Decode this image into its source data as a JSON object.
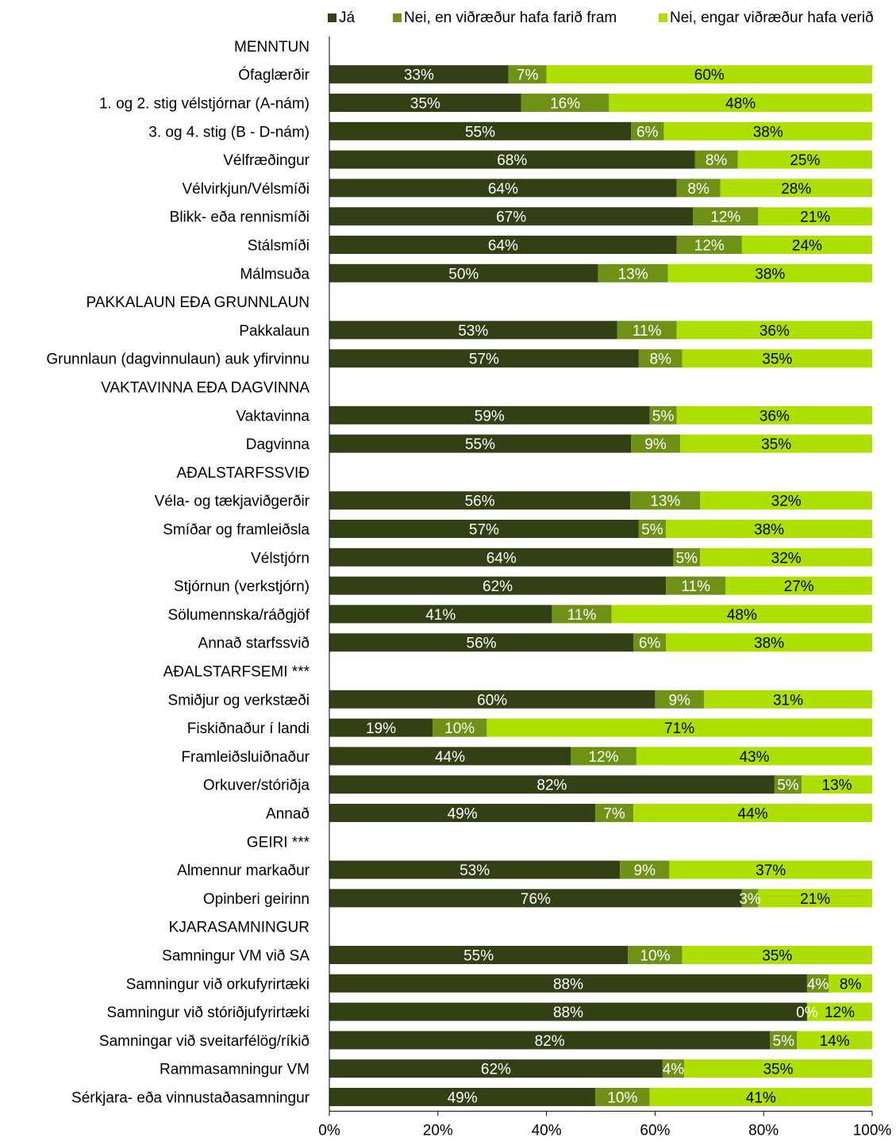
{
  "chart_data": {
    "type": "bar",
    "orientation": "horizontal",
    "stacked": "percent",
    "xlim": [
      0,
      100
    ],
    "x_ticks": [
      "0%",
      "20%",
      "40%",
      "60%",
      "80%",
      "100%"
    ],
    "grid": false,
    "legend_position": "top",
    "series": [
      {
        "name": "Já",
        "color": "#333f14"
      },
      {
        "name": "Nei, en viðræður hafa farið fram",
        "color": "#6f9115"
      },
      {
        "name": "Nei, engar viðræður hafa verið",
        "color": "#addf00"
      }
    ],
    "rows": [
      {
        "label": "MENNTUN",
        "header": true
      },
      {
        "label": "Ófaglærðir",
        "values": [
          33,
          7,
          60
        ]
      },
      {
        "label": "1. og 2. stig vélstjórnar (A-nám)",
        "values": [
          35,
          16,
          48
        ]
      },
      {
        "label": "3. og 4. stig (B - D-nám)",
        "values": [
          55,
          6,
          38
        ]
      },
      {
        "label": "Vélfræðingur",
        "values": [
          68,
          8,
          25
        ]
      },
      {
        "label": "Vélvirkjun/Vélsmíði",
        "values": [
          64,
          8,
          28
        ]
      },
      {
        "label": "Blikk- eða rennismíði",
        "values": [
          67,
          12,
          21
        ]
      },
      {
        "label": "Stálsmíði",
        "values": [
          64,
          12,
          24
        ]
      },
      {
        "label": "Málmsuða",
        "values": [
          50,
          13,
          38
        ]
      },
      {
        "label": "PAKKALAUN EÐA GRUNNLAUN",
        "header": true
      },
      {
        "label": "Pakkalaun",
        "values": [
          53,
          11,
          36
        ]
      },
      {
        "label": "Grunnlaun (dagvinnulaun) auk yfirvinnu",
        "values": [
          57,
          8,
          35
        ]
      },
      {
        "label": "VAKTAVINNA EÐA DAGVINNA",
        "header": true
      },
      {
        "label": "Vaktavinna",
        "values": [
          59,
          5,
          36
        ]
      },
      {
        "label": "Dagvinna",
        "values": [
          55,
          9,
          35
        ]
      },
      {
        "label": "AÐALSTARFSSVIÐ",
        "header": true
      },
      {
        "label": "Véla- og tækjaviðgerðir",
        "values": [
          56,
          13,
          32
        ]
      },
      {
        "label": "Smíðar og framleiðsla",
        "values": [
          57,
          5,
          38
        ]
      },
      {
        "label": "Vélstjórn",
        "values": [
          64,
          5,
          32
        ]
      },
      {
        "label": "Stjórnun (verkstjórn)",
        "values": [
          62,
          11,
          27
        ]
      },
      {
        "label": "Sölumennska/ráðgjöf",
        "values": [
          41,
          11,
          48
        ]
      },
      {
        "label": "Annað starfssvið",
        "values": [
          56,
          6,
          38
        ]
      },
      {
        "label": "AÐALSTARFSEMI ***",
        "header": true
      },
      {
        "label": "Smiðjur og verkstæði",
        "values": [
          60,
          9,
          31
        ]
      },
      {
        "label": "Fiskiðnaður í landi",
        "values": [
          19,
          10,
          71
        ]
      },
      {
        "label": "Framleiðsluiðnaður",
        "values": [
          44,
          12,
          43
        ]
      },
      {
        "label": "Orkuver/stóriðja",
        "values": [
          82,
          5,
          13
        ]
      },
      {
        "label": "Annað",
        "values": [
          49,
          7,
          44
        ]
      },
      {
        "label": "GEIRI ***",
        "header": true
      },
      {
        "label": "Almennur markaður",
        "values": [
          53,
          9,
          37
        ]
      },
      {
        "label": "Opinberi geirinn",
        "values": [
          76,
          3,
          21
        ]
      },
      {
        "label": "KJARASAMNINGUR",
        "header": true
      },
      {
        "label": "Samningur VM við SA",
        "values": [
          55,
          10,
          35
        ]
      },
      {
        "label": "Samningur við orkufyrirtæki",
        "values": [
          88,
          4,
          8
        ]
      },
      {
        "label": "Samningur við stóriðjufyrirtæki",
        "values": [
          88,
          0,
          12
        ]
      },
      {
        "label": "Samningar við sveitarfélög/ríkið",
        "values": [
          82,
          5,
          14
        ]
      },
      {
        "label": "Rammasamningur VM",
        "values": [
          62,
          4,
          35
        ]
      },
      {
        "label": "Sérkjara- eða vinnustaðasamningur",
        "values": [
          49,
          10,
          41
        ]
      }
    ]
  }
}
